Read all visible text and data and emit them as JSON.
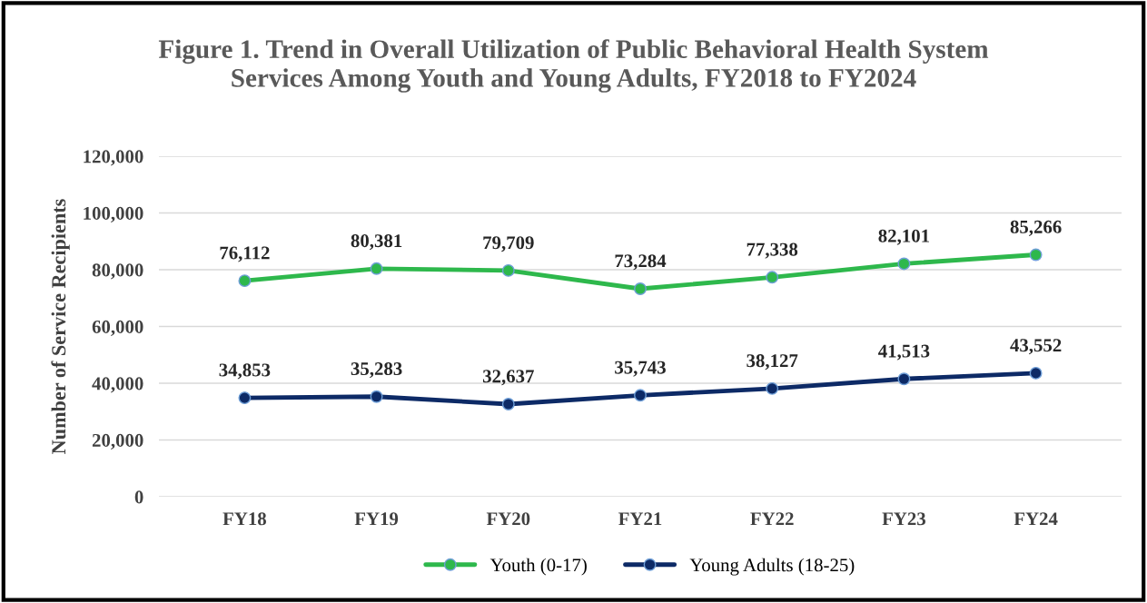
{
  "chart_data": {
    "type": "line",
    "title": "Figure 1. Trend in Overall Utilization of Public Behavioral Health System\nServices Among Youth and Young Adults, FY2018 to FY2024",
    "ylabel": "Number of Service Recipients",
    "categories": [
      "FY18",
      "FY19",
      "FY20",
      "FY21",
      "FY22",
      "FY23",
      "FY24"
    ],
    "series": [
      {
        "name": "Youth (0-17)",
        "color": "#2eb84c",
        "values": [
          76112,
          80381,
          79709,
          73284,
          77338,
          82101,
          85266
        ],
        "value_labels": [
          "76,112",
          "80,381",
          "79,709",
          "73,284",
          "77,338",
          "82,101",
          "85,266"
        ]
      },
      {
        "name": "Young Adults (18-25)",
        "color": "#0d2a66",
        "values": [
          34853,
          35283,
          32637,
          35743,
          38127,
          41513,
          43552
        ],
        "value_labels": [
          "34,853",
          "35,283",
          "32,637",
          "35,743",
          "38,127",
          "41,513",
          "43,552"
        ]
      }
    ],
    "ylim": [
      0,
      120000
    ],
    "yticks": [
      0,
      {
        "value": 20000,
        "label": "20,000"
      },
      {
        "value": 40000,
        "label": "40,000"
      },
      {
        "value": 60000,
        "label": "60,000"
      },
      {
        "value": 80000,
        "label": "80,000"
      },
      {
        "value": 100000,
        "label": "100,000"
      },
      {
        "value": 120000,
        "label": "120,000"
      }
    ],
    "grid": "y",
    "legend": "bottom",
    "marker": "circle",
    "line_style": "solid"
  }
}
